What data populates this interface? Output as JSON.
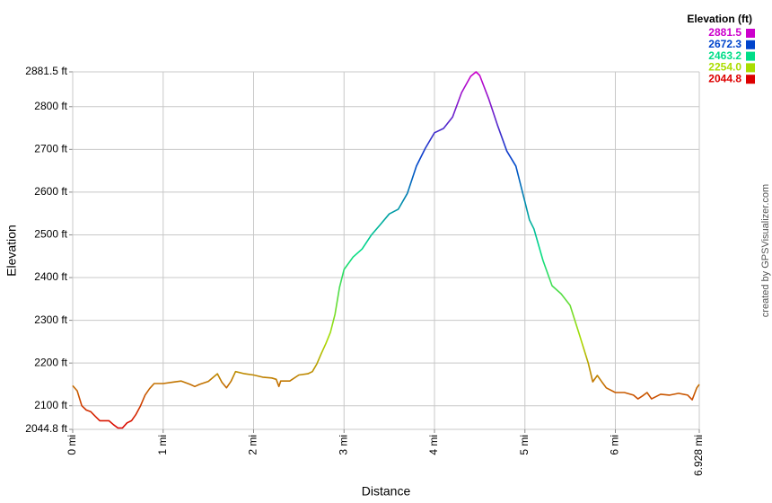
{
  "chart_data": {
    "type": "line",
    "x_label": "Distance",
    "y_label": "Elevation",
    "credit": "created by GPSVisualizer.com",
    "x": [
      0,
      0.05,
      0.1,
      0.15,
      0.2,
      0.25,
      0.3,
      0.4,
      0.45,
      0.5,
      0.55,
      0.6,
      0.65,
      0.7,
      0.75,
      0.8,
      0.85,
      0.9,
      1.0,
      1.1,
      1.2,
      1.3,
      1.35,
      1.4,
      1.5,
      1.6,
      1.65,
      1.7,
      1.75,
      1.8,
      1.9,
      2.0,
      2.1,
      2.2,
      2.25,
      2.28,
      2.3,
      2.4,
      2.5,
      2.6,
      2.65,
      2.7,
      2.75,
      2.8,
      2.85,
      2.9,
      2.95,
      3.0,
      3.1,
      3.2,
      3.3,
      3.4,
      3.5,
      3.6,
      3.7,
      3.8,
      3.9,
      4.0,
      4.1,
      4.2,
      4.3,
      4.4,
      4.46,
      4.5,
      4.6,
      4.7,
      4.8,
      4.9,
      5.0,
      5.05,
      5.1,
      5.2,
      5.3,
      5.4,
      5.5,
      5.6,
      5.7,
      5.75,
      5.8,
      5.85,
      5.9,
      6.0,
      6.1,
      6.2,
      6.25,
      6.3,
      6.35,
      6.4,
      6.5,
      6.6,
      6.7,
      6.8,
      6.85,
      6.9,
      6.928
    ],
    "values": [
      2147,
      2135,
      2100,
      2090,
      2086,
      2075,
      2065,
      2065,
      2056,
      2048,
      2048,
      2060,
      2065,
      2080,
      2100,
      2125,
      2140,
      2152,
      2152,
      2155,
      2158,
      2150,
      2145,
      2150,
      2157,
      2175,
      2155,
      2142,
      2157,
      2180,
      2175,
      2172,
      2167,
      2165,
      2162,
      2145,
      2158,
      2158,
      2172,
      2175,
      2180,
      2198,
      2223,
      2246,
      2272,
      2314,
      2377,
      2419,
      2448,
      2467,
      2499,
      2524,
      2549,
      2560,
      2597,
      2661,
      2703,
      2739,
      2749,
      2776,
      2833,
      2871,
      2881.5,
      2873,
      2818,
      2755,
      2696,
      2661,
      2577,
      2535,
      2514,
      2440,
      2381,
      2362,
      2335,
      2268,
      2200,
      2156,
      2171,
      2156,
      2142,
      2131,
      2131,
      2125,
      2116,
      2123,
      2131,
      2116,
      2127,
      2125,
      2129,
      2125,
      2114,
      2142,
      2150
    ],
    "xlim": [
      0,
      6.928
    ],
    "ylim": [
      2044.8,
      2881.5
    ],
    "xticks": [
      {
        "value": 0,
        "label": "0 mi"
      },
      {
        "value": 1,
        "label": "1 mi"
      },
      {
        "value": 2,
        "label": "2 mi"
      },
      {
        "value": 3,
        "label": "3 mi"
      },
      {
        "value": 4,
        "label": "4 mi"
      },
      {
        "value": 5,
        "label": "5 mi"
      },
      {
        "value": 6,
        "label": "6 mi"
      },
      {
        "value": 6.928,
        "label": "6.928 mi"
      }
    ],
    "yticks": [
      {
        "value": 2044.8,
        "label": "2044.8 ft"
      },
      {
        "value": 2100,
        "label": "2100 ft"
      },
      {
        "value": 2200,
        "label": "2200 ft"
      },
      {
        "value": 2300,
        "label": "2300 ft"
      },
      {
        "value": 2400,
        "label": "2400 ft"
      },
      {
        "value": 2500,
        "label": "2500 ft"
      },
      {
        "value": 2600,
        "label": "2600 ft"
      },
      {
        "value": 2700,
        "label": "2700 ft"
      },
      {
        "value": 2800,
        "label": "2800 ft"
      },
      {
        "value": 2881.5,
        "label": "2881.5 ft"
      }
    ],
    "grid": true,
    "legend": {
      "title": "Elevation (ft)",
      "position": "top-right",
      "entries": [
        {
          "value": 2881.5,
          "label": "2881.5",
          "color": "#cc00cc"
        },
        {
          "value": 2672.3,
          "label": "2672.3",
          "color": "#0044cc"
        },
        {
          "value": 2463.2,
          "label": "2463.2",
          "color": "#00dd88"
        },
        {
          "value": 2254,
          "label": "2254.0",
          "color": "#aadd00"
        },
        {
          "value": 2044.8,
          "label": "2044.8",
          "color": "#dd0000"
        }
      ]
    }
  }
}
